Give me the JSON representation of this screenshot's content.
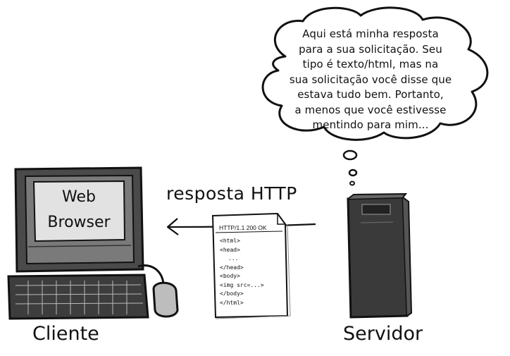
{
  "bubble": {
    "lines": [
      "Aqui está minha resposta",
      "para a sua solicitação. Seu",
      "tipo é texto/html, mas na",
      "sua solicitação você disse que",
      "estava tudo bem. Portanto,",
      "a menos que você estivesse",
      "mentindo para mim..."
    ]
  },
  "client": {
    "screen_line1": "Web",
    "screen_line2": "Browser",
    "label": "Cliente"
  },
  "response": {
    "label": "resposta HTTP",
    "status_line": "HTTP/1.1 200 OK",
    "html_lines": [
      "<html>",
      "<head>",
      "...",
      "</head>",
      "<body>",
      "<img src=...>",
      "</body>",
      "</html>"
    ]
  },
  "server": {
    "label": "Servidor"
  },
  "colors": {
    "ink": "#111111",
    "screen_fill": "#6e6e6e",
    "screen_inner": "#d9d9d9",
    "server_fill": "#3a3a3a"
  }
}
